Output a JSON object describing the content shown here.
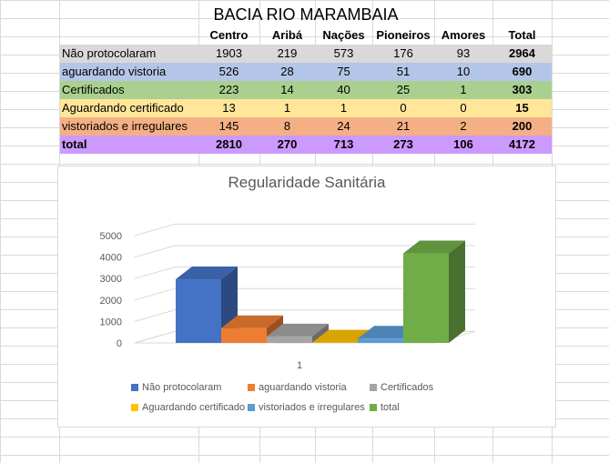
{
  "sheet": {
    "title": "BACIA RIO MARAMBAIA",
    "headers": [
      "",
      "Centro",
      "Aribá",
      "Nações",
      "Pioneiros",
      "Amores",
      "Total"
    ],
    "rows": [
      {
        "label": "Não protocolaram",
        "values": [
          "1903",
          "219",
          "573",
          "176",
          "93",
          "2964"
        ],
        "color": "#d9d9d9"
      },
      {
        "label": "aguardando vistoria",
        "values": [
          "526",
          "28",
          "75",
          "51",
          "10",
          "690"
        ],
        "color": "#b4c6e7"
      },
      {
        "label": "Certificados",
        "values": [
          "223",
          "14",
          "40",
          "25",
          "1",
          "303"
        ],
        "color": "#a9d08e"
      },
      {
        "label": "Aguardando certificado",
        "values": [
          "13",
          "1",
          "1",
          "0",
          "0",
          "15"
        ],
        "color": "#ffe699"
      },
      {
        "label": "vistoriados e irregulares",
        "values": [
          "145",
          "8",
          "24",
          "21",
          "2",
          "200"
        ],
        "color": "#f4b084"
      },
      {
        "label": "total",
        "values": [
          "2810",
          "270",
          "713",
          "273",
          "106",
          "4172"
        ],
        "color": "#cc99ff",
        "bold": true
      }
    ]
  },
  "chart_data": {
    "type": "bar",
    "title": "Regularidade Sanitária",
    "categories": [
      "1"
    ],
    "ylim": [
      0,
      5000
    ],
    "yticks": [
      "0",
      "1000",
      "2000",
      "3000",
      "4000",
      "5000"
    ],
    "grid": true,
    "legend_position": "bottom",
    "series": [
      {
        "name": "Não protocolaram",
        "values": [
          2964
        ],
        "color": "#4472c4"
      },
      {
        "name": "aguardando vistoria",
        "values": [
          690
        ],
        "color": "#ed7d31"
      },
      {
        "name": "Certificados",
        "values": [
          303
        ],
        "color": "#a5a5a5"
      },
      {
        "name": "Aguardando certificado",
        "values": [
          15
        ],
        "color": "#ffc000"
      },
      {
        "name": "vistoriados e irregulares",
        "values": [
          200
        ],
        "color": "#5b9bd5"
      },
      {
        "name": "total",
        "values": [
          4172
        ],
        "color": "#70ad47"
      }
    ]
  }
}
